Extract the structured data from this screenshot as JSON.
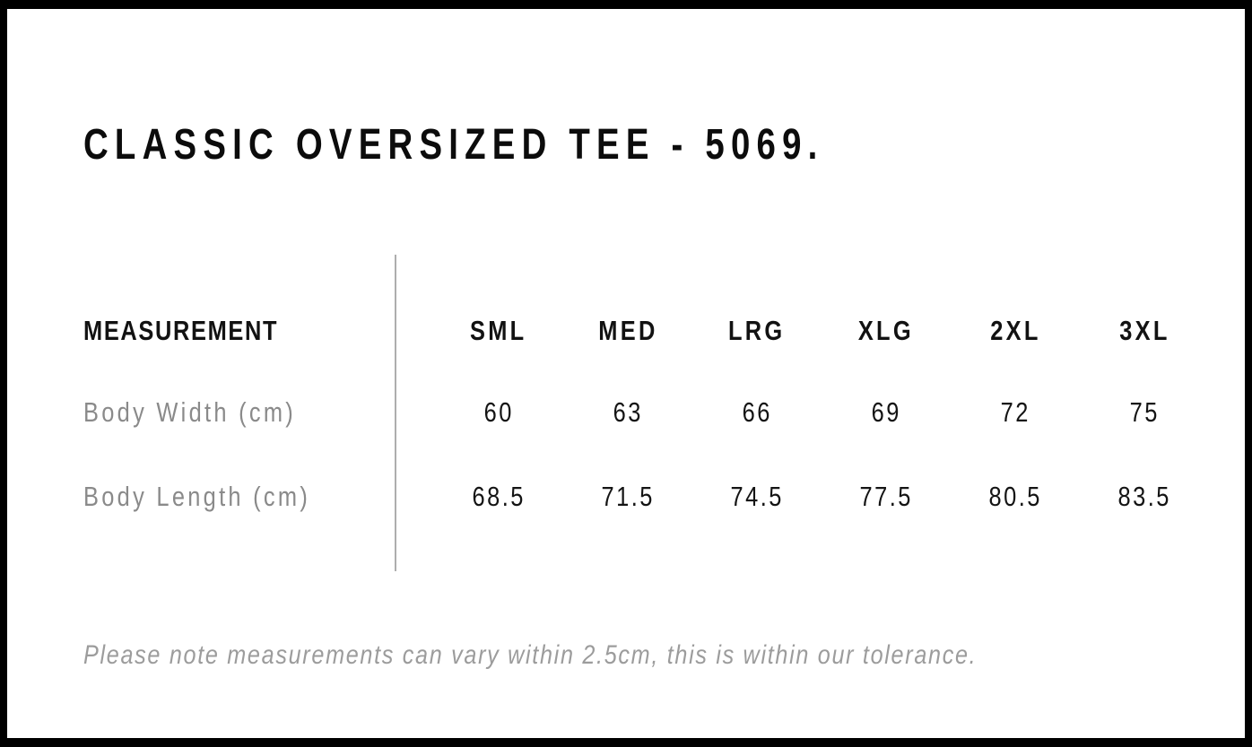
{
  "page": {
    "title": "CLASSIC OVERSIZED TEE - 5069.",
    "tolerance_note": "Please note measurements can vary within 2.5cm, this is within our tolerance."
  },
  "size_chart": {
    "measurement_header": "MEASUREMENT",
    "size_headers": [
      "SML",
      "MED",
      "LRG",
      "XLG",
      "2XL",
      "3XL"
    ],
    "rows": [
      {
        "label": "Body Width (cm)",
        "values": [
          "60",
          "63",
          "66",
          "69",
          "72",
          "75"
        ]
      },
      {
        "label": "Body Length (cm)",
        "values": [
          "68.5",
          "71.5",
          "74.5",
          "77.5",
          "80.5",
          "83.5"
        ]
      }
    ]
  },
  "colors": {
    "frame_black": "#000000",
    "text_black": "#121212",
    "label_gray": "#8a8a8a",
    "note_gray": "#9c9c9c",
    "divider_gray": "#aeaeae",
    "background": "#ffffff"
  }
}
